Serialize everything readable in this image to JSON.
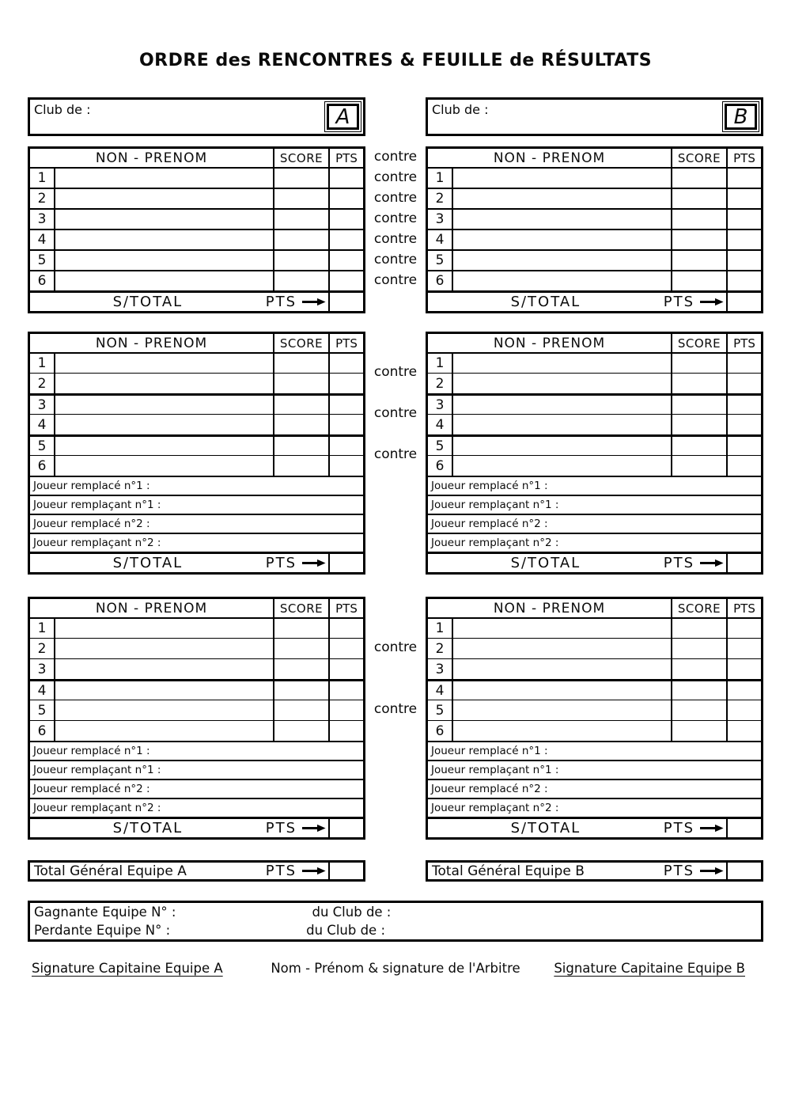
{
  "page": {
    "title": "ORDRE des RENCONTRES & FEUILLE de RÉSULTATS"
  },
  "clubs": {
    "label": "Club de :",
    "team_a_letter": "A",
    "team_b_letter": "B"
  },
  "table": {
    "header_name": "NON - PRENOM",
    "header_score": "SCORE",
    "header_pts": "PTS",
    "rows": [
      "1",
      "2",
      "3",
      "4",
      "5",
      "6"
    ],
    "subtotal_label": "S/TOTAL",
    "pts_label": "PTS",
    "contre": "contre"
  },
  "replacement_rows": [
    "Joueur remplacé n°1 :",
    "Joueur remplaçant n°1 :",
    "Joueur remplacé n°2 :",
    "Joueur remplaçant n°2 :"
  ],
  "totals": {
    "team_a_label": "Total Général Equipe A",
    "team_b_label": "Total Général Equipe B",
    "pts_label": "PTS"
  },
  "result_box": {
    "winner_label": "Gagnante Equipe N° :",
    "winner_club_label": "du Club de :",
    "loser_label": "Perdante Equipe N° :",
    "loser_club_label": "du Club de :"
  },
  "signatures": {
    "captain_a": "Signature Capitaine Equipe A",
    "referee": "Nom - Prénom & signature de l'Arbitre",
    "captain_b": "Signature Capitaine Equipe B"
  }
}
